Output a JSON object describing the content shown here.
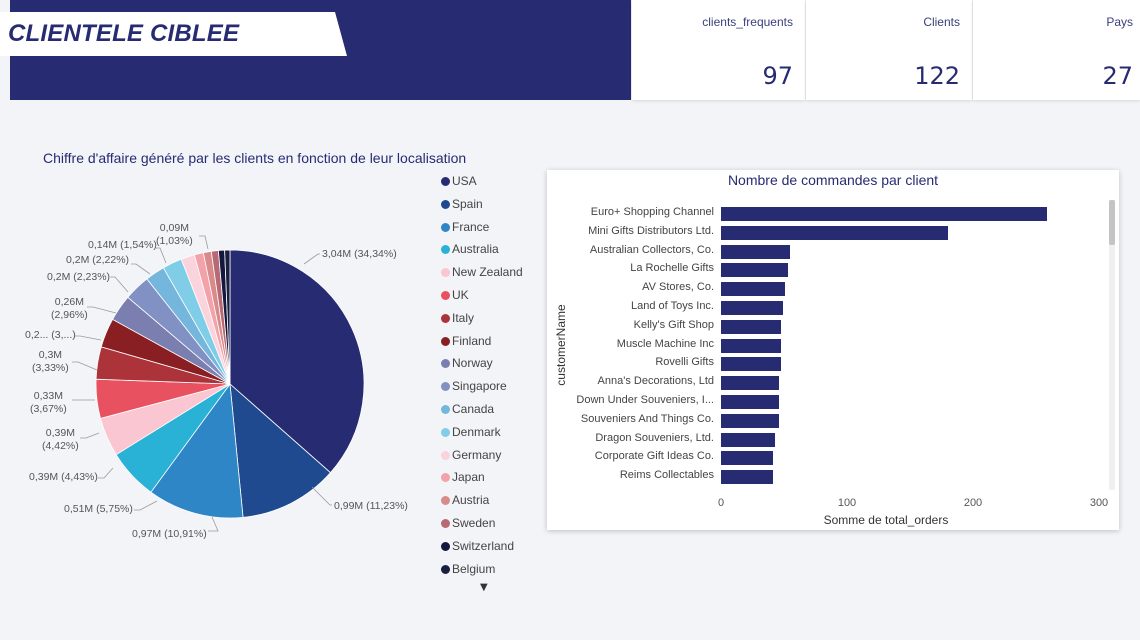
{
  "header": {
    "title": "CLIENTELE CIBLEE"
  },
  "kpis": [
    {
      "label": "clients_frequents",
      "value": "97"
    },
    {
      "label": "Clients",
      "value": "122"
    },
    {
      "label": "Pays",
      "value": "27"
    }
  ],
  "colors": {
    "navy": "#262b72"
  },
  "pie": {
    "title": "Chiffre d'affaire généré par les clients en fonction de leur localisation",
    "labels": {
      "usa": "3,04M (34,34%)",
      "spain": "0,99M (11,23%)",
      "france": "0,97M (10,91%)",
      "australia": "0,51M (5,75%)",
      "nz": "0,39M (4,43%)",
      "uk": [
        "0,39M",
        "(4,42%)"
      ],
      "italy": [
        "0,33M",
        "(3,67%)"
      ],
      "finland": [
        "0,3M",
        "(3,33%)"
      ],
      "norway": "0,2... (3,...)",
      "singapore": [
        "0,26M",
        "(2,96%)"
      ],
      "canada": "0,2M (2,23%)",
      "denmark": "0,2M (2,22%)",
      "germany": "0,14M (1,54%)",
      "japan": [
        "0,09M",
        "(1,03%)"
      ]
    },
    "legend_arrow": "▼"
  },
  "chart_data": [
    {
      "type": "pie",
      "title": "Chiffre d'affaire généré par les clients en fonction de leur localisation",
      "categories": [
        "USA",
        "Spain",
        "France",
        "Australia",
        "New Zealand",
        "UK",
        "Italy",
        "Finland",
        "Norway",
        "Singapore",
        "Canada",
        "Denmark",
        "Germany",
        "Japan",
        "Austria",
        "Sweden",
        "Switzerland",
        "Belgium"
      ],
      "values": [
        3.04,
        0.99,
        0.97,
        0.51,
        0.39,
        0.39,
        0.33,
        0.3,
        0.27,
        0.26,
        0.2,
        0.2,
        0.14,
        0.09,
        0.08,
        0.07,
        0.06,
        0.05
      ],
      "percents": [
        34.34,
        11.23,
        10.91,
        5.75,
        4.43,
        4.42,
        3.67,
        3.33,
        3.0,
        2.96,
        2.23,
        2.22,
        1.54,
        1.03,
        0.9,
        0.8,
        0.7,
        0.6
      ],
      "colors": [
        "#262b72",
        "#1f4a8f",
        "#2e86c6",
        "#29b1d6",
        "#f9c6d1",
        "#e8515f",
        "#ad333b",
        "#8a1f23",
        "#7a7fb0",
        "#8191c4",
        "#74b6dc",
        "#80cde7",
        "#fbd3dc",
        "#f2a2a8",
        "#d98a8a",
        "#b76a73",
        "#15173f",
        "#1a2140"
      ]
    },
    {
      "type": "bar",
      "title": "Nombre de commandes par client",
      "xlabel": "Somme de total_orders",
      "ylabel": "customerName",
      "categories": [
        "Euro+ Shopping Channel",
        "Mini Gifts Distributors Ltd.",
        "Australian Collectors, Co.",
        "La Rochelle Gifts",
        "AV Stores, Co.",
        "Land of Toys Inc.",
        "Kelly's Gift Shop",
        "Muscle Machine Inc",
        "Rovelli Gifts",
        "Anna's Decorations, Ltd",
        "Down Under Souveniers, I...",
        "Souveniers And Things Co.",
        "Dragon Souveniers, Ltd.",
        "Corporate Gift Ideas Co.",
        "Reims Collectables"
      ],
      "values": [
        259,
        180,
        55,
        53,
        51,
        49,
        48,
        48,
        48,
        46,
        46,
        46,
        43,
        41,
        41
      ],
      "xlim": [
        0,
        300
      ],
      "xticks": [
        "0",
        "100",
        "200",
        "300"
      ]
    }
  ]
}
